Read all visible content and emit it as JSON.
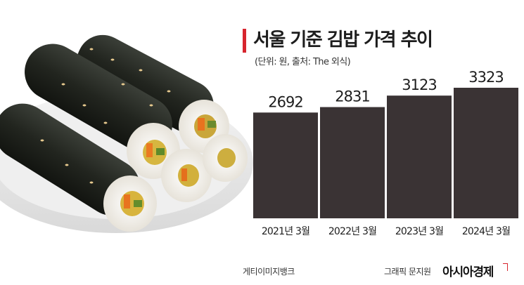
{
  "header": {
    "title": "서울 기준 김밥 가격 추이",
    "subtitle": "(단위: 원, 출처: The 외식)"
  },
  "colors": {
    "accent": "#d7252e",
    "bar": "#3a3334",
    "text": "#1d1d1d"
  },
  "chart_data": {
    "type": "bar",
    "title": "서울 기준 김밥 가격 추이",
    "subtitle": "(단위: 원, 출처: The 외식)",
    "categories": [
      "2021년 3월",
      "2022년 3월",
      "2023년 3월",
      "2024년 3월"
    ],
    "values": [
      2692,
      2831,
      3123,
      3323
    ],
    "data_labels": [
      "2692",
      "2831",
      "3123",
      "3323"
    ],
    "grid": false,
    "legend": "none"
  },
  "photo": {
    "subject": "gimbap rolls on a white plate"
  },
  "footer": {
    "photo_credit": "게티이미지뱅크",
    "graphic_credit": "그래픽 문지원",
    "logo_text": "아시아경제"
  }
}
